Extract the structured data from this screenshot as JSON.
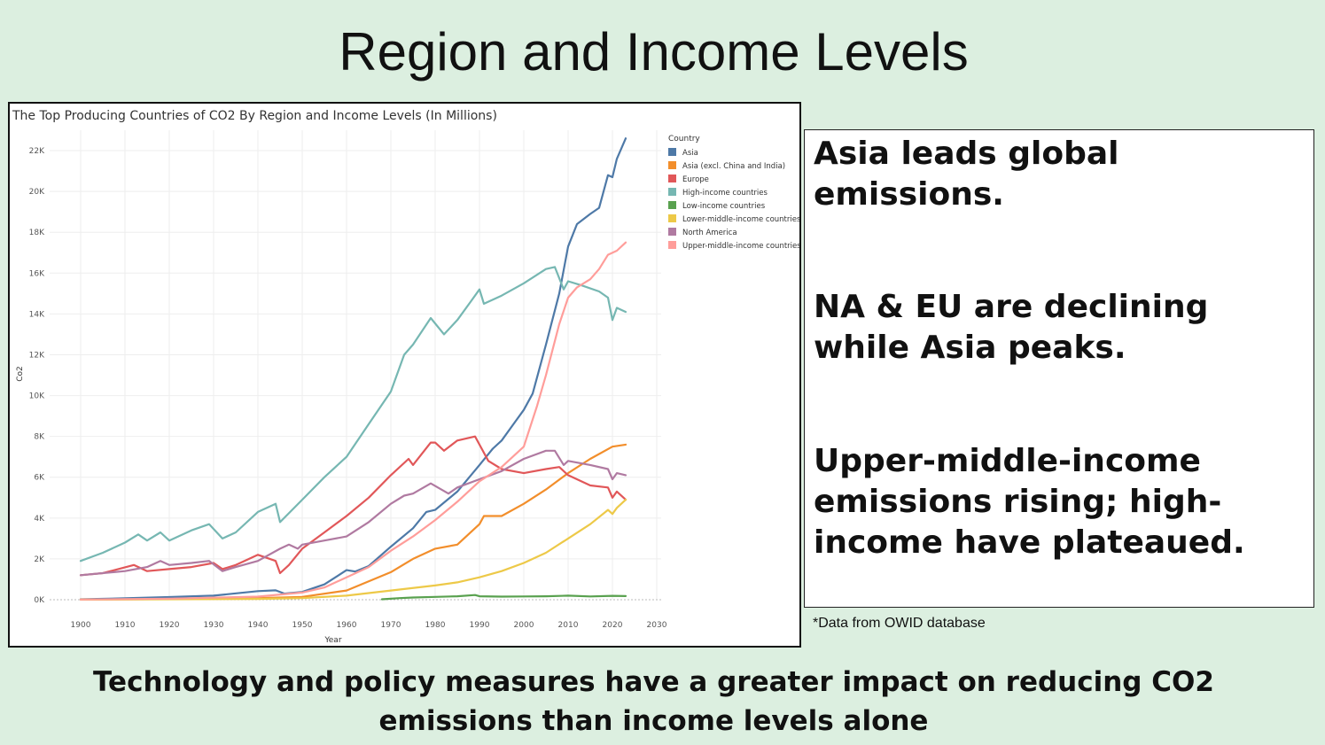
{
  "slide": {
    "title": "Region and Income Levels",
    "notes": [
      "Asia leads global emissions.",
      "NA & EU are declining while Asia peaks.",
      "Upper-middle-income emissions rising; high-income have plateaued."
    ],
    "source": "*Data from OWID database",
    "conclusion": "Technology and policy measures have a greater impact on reducing CO2 emissions than income levels alone"
  },
  "chart_data": {
    "type": "line",
    "title": "The Top Producing Countries of CO2 By Region and Income Levels (In Millions)",
    "xlabel": "Year",
    "ylabel": "Co2",
    "xlim": [
      1893,
      2031
    ],
    "ylim": [
      0,
      23000
    ],
    "x_ticks": [
      1900,
      1910,
      1920,
      1930,
      1940,
      1950,
      1960,
      1970,
      1980,
      1990,
      2000,
      2010,
      2020,
      2030
    ],
    "y_ticks": [
      0,
      2000,
      4000,
      6000,
      8000,
      10000,
      12000,
      14000,
      16000,
      18000,
      20000,
      22000
    ],
    "y_tick_labels": [
      "0K",
      "2K",
      "4K",
      "6K",
      "8K",
      "10K",
      "12K",
      "14K",
      "16K",
      "18K",
      "20K",
      "22K"
    ],
    "grid": true,
    "legend_title": "Country",
    "legend_position": "top-right",
    "series": [
      {
        "name": "Asia",
        "color": "#4e79a7",
        "points": [
          [
            1900,
            20
          ],
          [
            1910,
            70
          ],
          [
            1920,
            130
          ],
          [
            1930,
            200
          ],
          [
            1940,
            420
          ],
          [
            1944,
            460
          ],
          [
            1946,
            300
          ],
          [
            1950,
            380
          ],
          [
            1955,
            750
          ],
          [
            1960,
            1450
          ],
          [
            1962,
            1380
          ],
          [
            1965,
            1650
          ],
          [
            1970,
            2600
          ],
          [
            1975,
            3500
          ],
          [
            1978,
            4300
          ],
          [
            1980,
            4400
          ],
          [
            1985,
            5300
          ],
          [
            1990,
            6600
          ],
          [
            1993,
            7400
          ],
          [
            1995,
            7800
          ],
          [
            1998,
            8700
          ],
          [
            2000,
            9300
          ],
          [
            2002,
            10100
          ],
          [
            2005,
            12500
          ],
          [
            2008,
            15000
          ],
          [
            2010,
            17300
          ],
          [
            2012,
            18400
          ],
          [
            2015,
            18900
          ],
          [
            2017,
            19200
          ],
          [
            2019,
            20800
          ],
          [
            2020,
            20700
          ],
          [
            2021,
            21600
          ],
          [
            2023,
            22600
          ]
        ]
      },
      {
        "name": "Asia (excl. China and India)",
        "color": "#f28e2b",
        "points": [
          [
            1900,
            10
          ],
          [
            1920,
            30
          ],
          [
            1940,
            80
          ],
          [
            1950,
            140
          ],
          [
            1960,
            450
          ],
          [
            1970,
            1350
          ],
          [
            1975,
            2000
          ],
          [
            1980,
            2500
          ],
          [
            1985,
            2700
          ],
          [
            1990,
            3700
          ],
          [
            1991,
            4100
          ],
          [
            1995,
            4100
          ],
          [
            2000,
            4700
          ],
          [
            2005,
            5400
          ],
          [
            2010,
            6200
          ],
          [
            2015,
            6900
          ],
          [
            2020,
            7500
          ],
          [
            2023,
            7600
          ]
        ]
      },
      {
        "name": "Europe",
        "color": "#e15759",
        "points": [
          [
            1900,
            1200
          ],
          [
            1905,
            1300
          ],
          [
            1912,
            1700
          ],
          [
            1915,
            1400
          ],
          [
            1920,
            1500
          ],
          [
            1925,
            1600
          ],
          [
            1930,
            1800
          ],
          [
            1932,
            1500
          ],
          [
            1935,
            1700
          ],
          [
            1940,
            2200
          ],
          [
            1944,
            1900
          ],
          [
            1945,
            1300
          ],
          [
            1947,
            1700
          ],
          [
            1950,
            2500
          ],
          [
            1955,
            3300
          ],
          [
            1960,
            4100
          ],
          [
            1965,
            5000
          ],
          [
            1970,
            6100
          ],
          [
            1974,
            6900
          ],
          [
            1975,
            6600
          ],
          [
            1979,
            7700
          ],
          [
            1980,
            7700
          ],
          [
            1982,
            7300
          ],
          [
            1985,
            7800
          ],
          [
            1989,
            8000
          ],
          [
            1990,
            7600
          ],
          [
            1992,
            6800
          ],
          [
            1995,
            6400
          ],
          [
            2000,
            6200
          ],
          [
            2005,
            6400
          ],
          [
            2008,
            6500
          ],
          [
            2010,
            6100
          ],
          [
            2015,
            5600
          ],
          [
            2019,
            5500
          ],
          [
            2020,
            5000
          ],
          [
            2021,
            5300
          ],
          [
            2023,
            4900
          ]
        ]
      },
      {
        "name": "High-income countries",
        "color": "#76b7b2",
        "points": [
          [
            1900,
            1900
          ],
          [
            1905,
            2300
          ],
          [
            1910,
            2800
          ],
          [
            1913,
            3200
          ],
          [
            1915,
            2900
          ],
          [
            1918,
            3300
          ],
          [
            1920,
            2900
          ],
          [
            1925,
            3400
          ],
          [
            1929,
            3700
          ],
          [
            1932,
            3000
          ],
          [
            1935,
            3300
          ],
          [
            1940,
            4300
          ],
          [
            1944,
            4700
          ],
          [
            1945,
            3800
          ],
          [
            1950,
            4900
          ],
          [
            1955,
            6000
          ],
          [
            1960,
            7000
          ],
          [
            1965,
            8600
          ],
          [
            1970,
            10200
          ],
          [
            1973,
            12000
          ],
          [
            1975,
            12500
          ],
          [
            1979,
            13800
          ],
          [
            1982,
            13000
          ],
          [
            1985,
            13700
          ],
          [
            1988,
            14600
          ],
          [
            1990,
            15200
          ],
          [
            1991,
            14500
          ],
          [
            1995,
            14900
          ],
          [
            2000,
            15500
          ],
          [
            2005,
            16200
          ],
          [
            2007,
            16300
          ],
          [
            2009,
            15200
          ],
          [
            2010,
            15600
          ],
          [
            2013,
            15400
          ],
          [
            2017,
            15100
          ],
          [
            2019,
            14800
          ],
          [
            2020,
            13700
          ],
          [
            2021,
            14300
          ],
          [
            2023,
            14100
          ]
        ]
      },
      {
        "name": "Low-income countries",
        "color": "#59a14f",
        "points": [
          [
            1968,
            20
          ],
          [
            1972,
            80
          ],
          [
            1975,
            110
          ],
          [
            1980,
            140
          ],
          [
            1985,
            170
          ],
          [
            1989,
            230
          ],
          [
            1990,
            170
          ],
          [
            1995,
            150
          ],
          [
            2000,
            160
          ],
          [
            2005,
            170
          ],
          [
            2010,
            200
          ],
          [
            2015,
            160
          ],
          [
            2020,
            190
          ],
          [
            2023,
            180
          ]
        ]
      },
      {
        "name": "Lower-middle-income countries",
        "color": "#edc948",
        "points": [
          [
            1900,
            5
          ],
          [
            1920,
            20
          ],
          [
            1940,
            40
          ],
          [
            1950,
            80
          ],
          [
            1960,
            200
          ],
          [
            1970,
            450
          ],
          [
            1980,
            700
          ],
          [
            1985,
            850
          ],
          [
            1990,
            1100
          ],
          [
            1995,
            1400
          ],
          [
            2000,
            1800
          ],
          [
            2005,
            2300
          ],
          [
            2010,
            3000
          ],
          [
            2015,
            3700
          ],
          [
            2019,
            4400
          ],
          [
            2020,
            4200
          ],
          [
            2021,
            4500
          ],
          [
            2023,
            4900
          ]
        ]
      },
      {
        "name": "North America",
        "color": "#b07aa1",
        "points": [
          [
            1900,
            1200
          ],
          [
            1910,
            1400
          ],
          [
            1915,
            1600
          ],
          [
            1918,
            1900
          ],
          [
            1920,
            1700
          ],
          [
            1925,
            1800
          ],
          [
            1929,
            1900
          ],
          [
            1932,
            1400
          ],
          [
            1935,
            1600
          ],
          [
            1940,
            1900
          ],
          [
            1945,
            2500
          ],
          [
            1947,
            2700
          ],
          [
            1949,
            2500
          ],
          [
            1950,
            2700
          ],
          [
            1955,
            2900
          ],
          [
            1960,
            3100
          ],
          [
            1965,
            3800
          ],
          [
            1970,
            4700
          ],
          [
            1973,
            5100
          ],
          [
            1975,
            5200
          ],
          [
            1979,
            5700
          ],
          [
            1983,
            5200
          ],
          [
            1985,
            5500
          ],
          [
            1990,
            5900
          ],
          [
            1995,
            6300
          ],
          [
            2000,
            6900
          ],
          [
            2005,
            7300
          ],
          [
            2007,
            7300
          ],
          [
            2009,
            6600
          ],
          [
            2010,
            6800
          ],
          [
            2015,
            6600
          ],
          [
            2019,
            6400
          ],
          [
            2020,
            5900
          ],
          [
            2021,
            6200
          ],
          [
            2023,
            6100
          ]
        ]
      },
      {
        "name": "Upper-middle-income countries",
        "color": "#ff9d9a",
        "points": [
          [
            1900,
            10
          ],
          [
            1920,
            50
          ],
          [
            1940,
            150
          ],
          [
            1950,
            350
          ],
          [
            1955,
            600
          ],
          [
            1960,
            1100
          ],
          [
            1965,
            1600
          ],
          [
            1970,
            2400
          ],
          [
            1975,
            3100
          ],
          [
            1980,
            3900
          ],
          [
            1985,
            4800
          ],
          [
            1990,
            5800
          ],
          [
            1995,
            6500
          ],
          [
            2000,
            7500
          ],
          [
            2003,
            9500
          ],
          [
            2005,
            11000
          ],
          [
            2008,
            13500
          ],
          [
            2010,
            14800
          ],
          [
            2012,
            15300
          ],
          [
            2015,
            15700
          ],
          [
            2017,
            16200
          ],
          [
            2019,
            16900
          ],
          [
            2021,
            17100
          ],
          [
            2023,
            17500
          ]
        ]
      }
    ]
  }
}
